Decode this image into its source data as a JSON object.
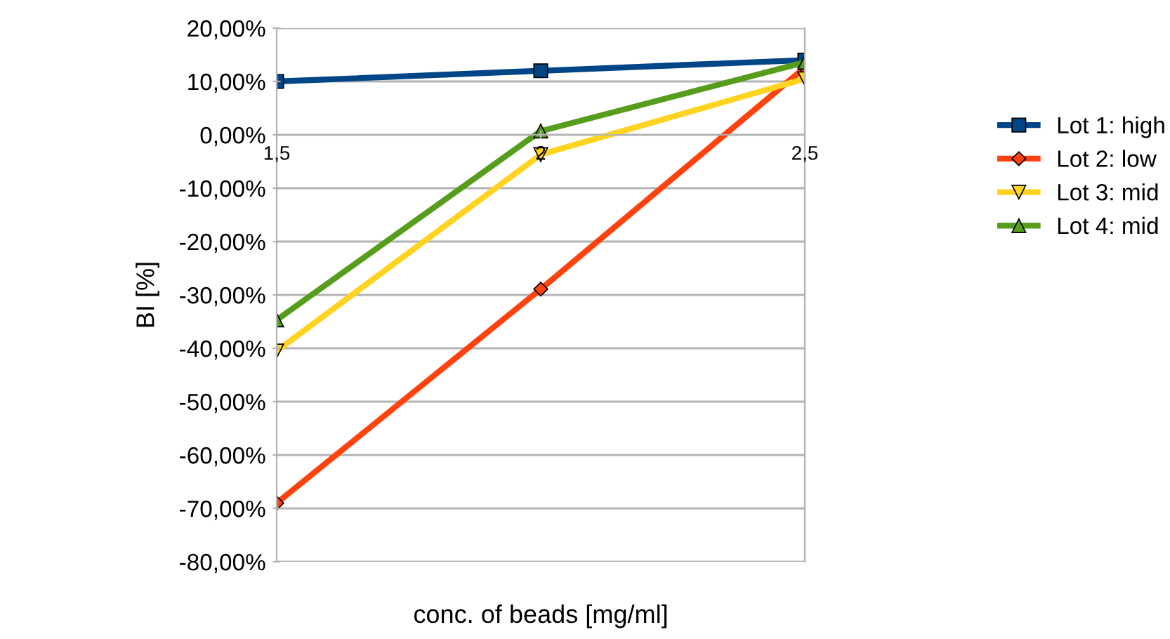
{
  "chart_data": {
    "type": "line",
    "xlabel": "conc. of beads [mg/ml]",
    "ylabel": "BI [%]",
    "categories": [
      "1,5",
      "2",
      "2,5"
    ],
    "series": [
      {
        "name": "Lot 1: high",
        "color": "#004586",
        "marker": "square",
        "values": [
          10.0,
          12.0,
          14.0
        ]
      },
      {
        "name": "Lot 2: low",
        "color": "#ff420e",
        "marker": "diamond",
        "values": [
          -69.0,
          -28.9,
          12.6
        ]
      },
      {
        "name": "Lot 3: mid",
        "color": "#ffd320",
        "marker": "triangle_down",
        "values": [
          -40.5,
          -3.7,
          10.5
        ]
      },
      {
        "name": "Lot 4: mid",
        "color": "#579d1c",
        "marker": "triangle",
        "values": [
          -34.7,
          0.7,
          13.6
        ]
      }
    ],
    "ylim": [
      -80,
      20
    ],
    "yticks": [
      {
        "value": -80,
        "label": "-80,00%"
      },
      {
        "value": -70,
        "label": "-70,00%"
      },
      {
        "value": -60,
        "label": "-60,00%"
      },
      {
        "value": -50,
        "label": "-50,00%"
      },
      {
        "value": -40,
        "label": "-40,00%"
      },
      {
        "value": -30,
        "label": "-30,00%"
      },
      {
        "value": -20,
        "label": "-20,00%"
      },
      {
        "value": -10,
        "label": "-10,00%"
      },
      {
        "value": 0,
        "label": "0,00%"
      },
      {
        "value": 10,
        "label": "10,00%"
      },
      {
        "value": 20,
        "label": "20,00%"
      }
    ],
    "grid": "y",
    "legend": "right",
    "line_style": "solid"
  }
}
